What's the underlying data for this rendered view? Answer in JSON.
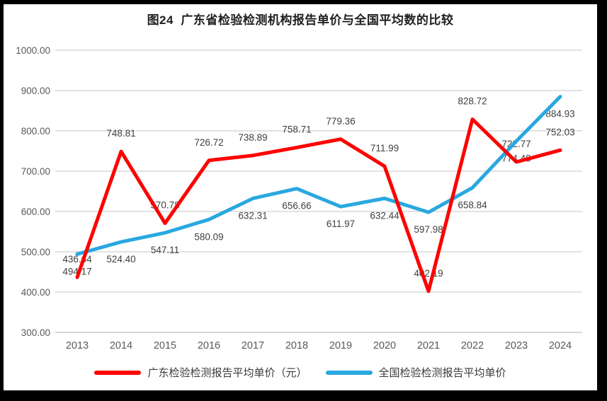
{
  "window": {
    "background": "#000000",
    "panel_background": "#ffffff"
  },
  "chart_data": {
    "type": "line",
    "title": "图24  广东省检验检测机构报告单价与全国平均数的比较",
    "categories": [
      "2013",
      "2014",
      "2015",
      "2016",
      "2017",
      "2018",
      "2019",
      "2020",
      "2021",
      "2022",
      "2023",
      "2024"
    ],
    "series": [
      {
        "name": "广东检验检测报告平均单价（元）",
        "color": "#fe0000",
        "values": [
          436.64,
          748.81,
          570.78,
          726.72,
          738.89,
          758.71,
          779.36,
          711.99,
          402.19,
          828.72,
          722.77,
          752.03
        ],
        "label_position": "above"
      },
      {
        "name": "全国检验检测报告平均单价",
        "color": "#29a8e0",
        "values": [
          494.17,
          524.4,
          547.11,
          580.09,
          632.31,
          656.66,
          611.97,
          632.44,
          597.98,
          658.84,
          774.48,
          884.93
        ],
        "label_position": "below"
      }
    ],
    "ylim": [
      300,
      1000
    ],
    "ytick_step": 100,
    "ytick_labels": [
      "300.00",
      "400.00",
      "500.00",
      "600.00",
      "700.00",
      "800.00",
      "900.00",
      "1000.00"
    ],
    "value_decimals": 2,
    "grid": true,
    "legend_position": "bottom",
    "colors": {
      "gridline": "#d9d9d9",
      "axis_line": "#d0d0d0",
      "tick_label": "#595959",
      "data_label": "#3f3f3f",
      "title": "#1f1f1f"
    }
  }
}
